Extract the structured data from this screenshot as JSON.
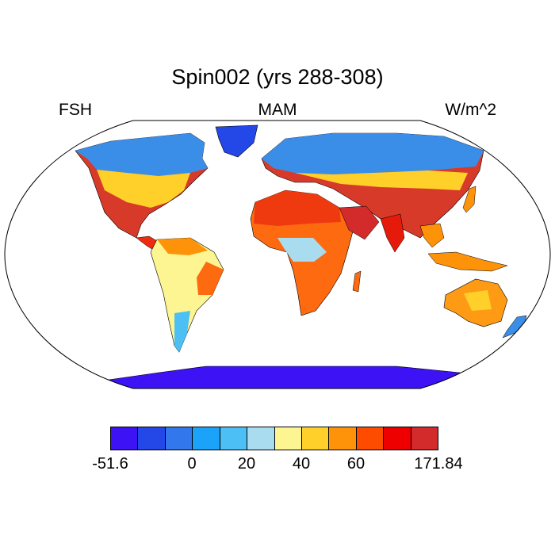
{
  "title": "Spin002 (yrs 288-308)",
  "left_label": "FSH",
  "center_label": "MAM",
  "right_label": "W/m^2",
  "colorbar": {
    "colors": [
      "#3d12f5",
      "#2447e8",
      "#3277ec",
      "#1aa3f8",
      "#4cc0f5",
      "#a9dcef",
      "#fdf591",
      "#fed029",
      "#fe9208",
      "#fd4c00",
      "#ef0000",
      "#d32b2b"
    ],
    "tick_labels": [
      "-51.6",
      "0",
      "20",
      "40",
      "60",
      "171.84"
    ]
  }
}
